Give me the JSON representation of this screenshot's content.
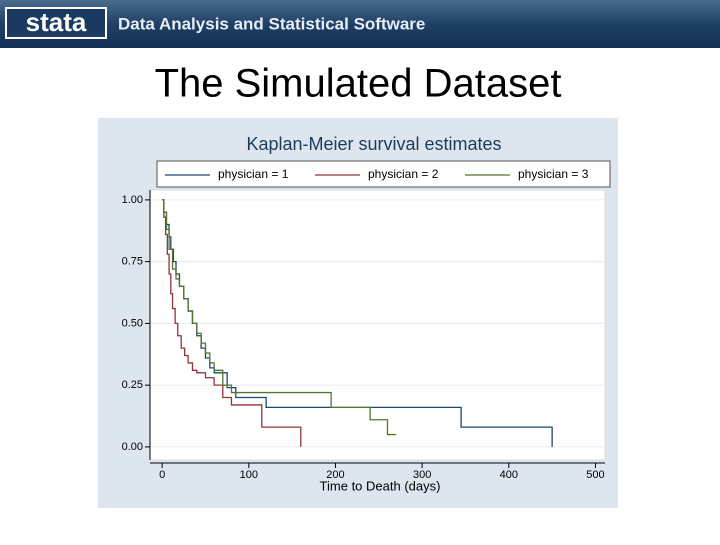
{
  "header": {
    "logo": "stata",
    "tagline": "Data Analysis and Statistical Software"
  },
  "slide_title": "The Simulated Dataset",
  "chart_data": {
    "type": "step",
    "title": "Kaplan-Meier survival estimates",
    "x_label": "Time to Death (days)",
    "xlim": [
      -14,
      511
    ],
    "ylim": [
      -0.053,
      1.04
    ],
    "xticks": [
      0,
      100,
      200,
      300,
      400,
      500
    ],
    "yticks": [
      {
        "value": 0,
        "label": "0.00"
      },
      {
        "value": 0.25,
        "label": "0.25"
      },
      {
        "value": 0.5,
        "label": "0.50"
      },
      {
        "value": 0.75,
        "label": "0.75"
      },
      {
        "value": 1,
        "label": "1.00"
      }
    ],
    "grid": true,
    "legend": "top",
    "series": [
      {
        "name": "physician = 1",
        "color": "#1a476f",
        "x": [
          0,
          2,
          5,
          8,
          10,
          13,
          16,
          20,
          25,
          30,
          35,
          40,
          45,
          50,
          55,
          60,
          75,
          85,
          120,
          345,
          450
        ],
        "values": [
          1,
          0.95,
          0.9,
          0.85,
          0.8,
          0.75,
          0.7,
          0.65,
          0.6,
          0.55,
          0.5,
          0.45,
          0.4,
          0.36,
          0.32,
          0.3,
          0.24,
          0.2,
          0.16,
          0.08,
          0
        ]
      },
      {
        "name": "physician = 2",
        "color": "#90353b",
        "x": [
          0,
          2,
          4,
          6,
          8,
          10,
          12,
          15,
          18,
          22,
          26,
          30,
          35,
          40,
          50,
          60,
          70,
          80,
          115,
          160
        ],
        "values": [
          1,
          0.93,
          0.86,
          0.78,
          0.7,
          0.62,
          0.56,
          0.5,
          0.45,
          0.4,
          0.37,
          0.34,
          0.31,
          0.3,
          0.28,
          0.25,
          0.2,
          0.17,
          0.08,
          0
        ]
      },
      {
        "name": "physician = 3",
        "color": "#55752f",
        "x": [
          0,
          2,
          5,
          8,
          12,
          16,
          20,
          25,
          30,
          35,
          40,
          45,
          50,
          55,
          60,
          70,
          80,
          195,
          240,
          260,
          270
        ],
        "values": [
          1,
          0.95,
          0.88,
          0.8,
          0.72,
          0.68,
          0.65,
          0.6,
          0.55,
          0.5,
          0.46,
          0.42,
          0.38,
          0.34,
          0.31,
          0.25,
          0.22,
          0.16,
          0.11,
          0.05,
          0.05
        ]
      }
    ]
  }
}
